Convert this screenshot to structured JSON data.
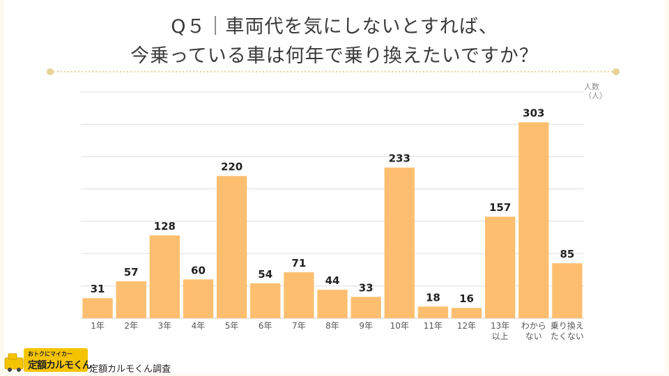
{
  "title": {
    "line1": "Q５｜車両代を気にしないとすれば、",
    "line2": "今乗っている車は何年で乗り換えたいですか？"
  },
  "unit_label": {
    "line1": "人数",
    "line2": "（人）"
  },
  "brand": {
    "tagline": "おトクにマイカー",
    "name": "定額カルモくん"
  },
  "source": "定額カルモくん調査",
  "colors": {
    "bar": "#fdbf6f",
    "accent": "#e8d394",
    "grid": "#dddddd"
  },
  "chart_data": {
    "type": "bar",
    "categories": [
      [
        "1年"
      ],
      [
        "2年"
      ],
      [
        "3年"
      ],
      [
        "4年"
      ],
      [
        "5年"
      ],
      [
        "6年"
      ],
      [
        "7年"
      ],
      [
        "8年"
      ],
      [
        "9年"
      ],
      [
        "10年"
      ],
      [
        "11年"
      ],
      [
        "12年"
      ],
      [
        "13年",
        "以上"
      ],
      [
        "わから",
        "ない"
      ],
      [
        "乗り換え",
        "たくない"
      ]
    ],
    "values": [
      31,
      57,
      128,
      60,
      220,
      54,
      71,
      44,
      33,
      233,
      18,
      16,
      157,
      303,
      85
    ],
    "ylim": [
      0,
      350
    ],
    "grid": true,
    "data_labels": true
  }
}
